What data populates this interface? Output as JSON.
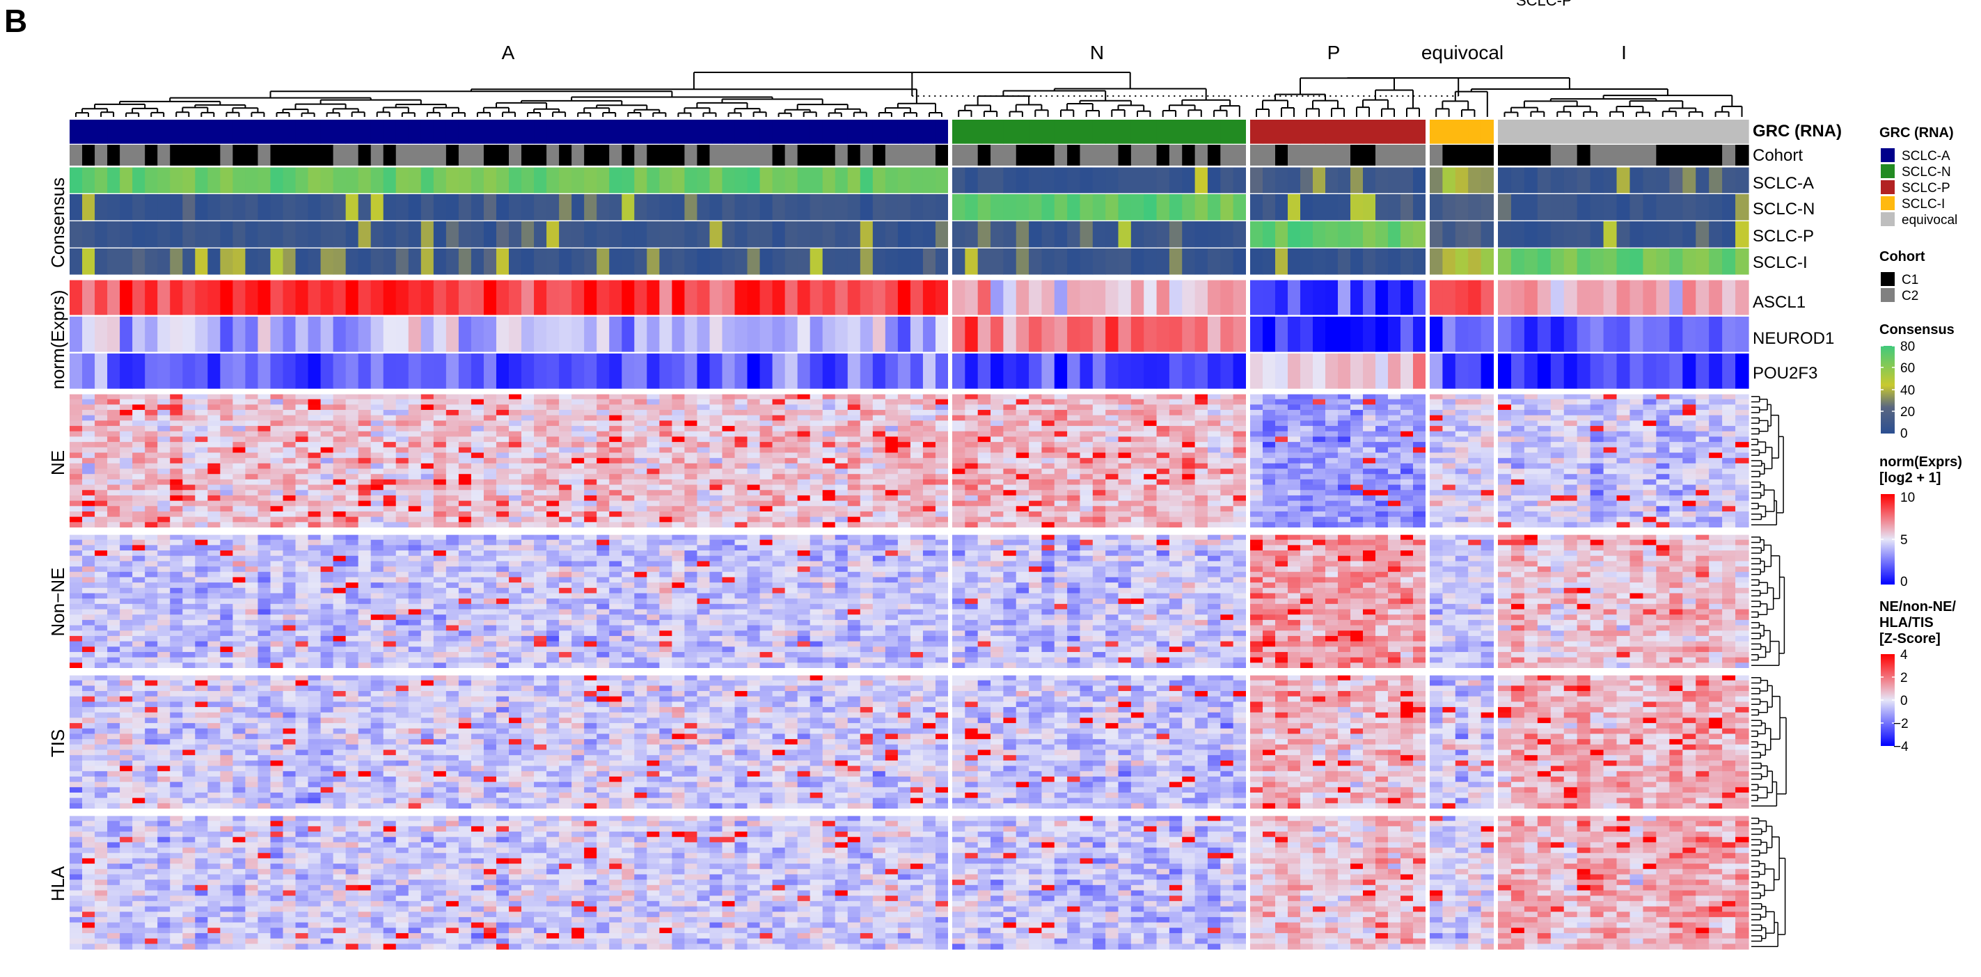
{
  "figure": {
    "panel_label": "B",
    "top_cut_text": "SCLC-P"
  },
  "chart_data": {
    "type": "heatmap",
    "title": "",
    "cluster_labels": [
      "A",
      "N",
      "P",
      "equivocal",
      "I"
    ],
    "cluster_sample_counts": [
      70,
      23,
      14,
      5,
      19
    ],
    "annotations": {
      "grc_label": "GRC (RNA)",
      "cohort_label": "Cohort",
      "grc_colors": [
        "#00008B",
        "#228B22",
        "#B22222",
        "#FFB90F",
        "#BEBEBE"
      ],
      "cohort_pattern": "mixed C1/C2"
    },
    "consensus": {
      "group_label": "Consensus",
      "rows": [
        "SCLC-A",
        "SCLC-N",
        "SCLC-P",
        "SCLC-I"
      ],
      "range": [
        0,
        80
      ]
    },
    "expression": {
      "group_label": "norm(Exprs)",
      "rows": [
        "ASCL1",
        "NEUROD1",
        "POU2F3"
      ],
      "range": [
        0,
        10
      ]
    },
    "signatures": {
      "groups": [
        {
          "label": "NE",
          "gene_count": 25
        },
        {
          "label": "Non−NE",
          "gene_count": 25
        },
        {
          "label": "TIS",
          "gene_count": 25
        },
        {
          "label": "HLA",
          "gene_count": 25
        }
      ],
      "range": [
        -4,
        4
      ]
    },
    "legends": [
      {
        "title": "GRC (RNA)",
        "items": [
          {
            "label": "SCLC-A",
            "color": "#00008B"
          },
          {
            "label": "SCLC-N",
            "color": "#228B22"
          },
          {
            "label": "SCLC-P",
            "color": "#B22222"
          },
          {
            "label": "SCLC-I",
            "color": "#FFB90F"
          },
          {
            "label": "equivocal",
            "color": "#BEBEBE"
          }
        ]
      },
      {
        "title": "Cohort",
        "items": [
          {
            "label": "C1",
            "color": "#000000"
          },
          {
            "label": "C2",
            "color": "#808080"
          }
        ]
      },
      {
        "title": "Consensus",
        "ticks": [
          "80",
          "60",
          "40",
          "20",
          "0"
        ],
        "colors": [
          "#2B4E91",
          "#5A6781",
          "#C9C92F",
          "#41C97C"
        ]
      },
      {
        "title_lines": [
          "norm(Exprs)",
          "[log2 + 1]"
        ],
        "ticks": [
          "10",
          "5",
          "0"
        ],
        "colors": [
          "#0000FF",
          "#E6E6F8",
          "#FF0000"
        ]
      },
      {
        "title_lines": [
          "NE/non-NE/",
          "HLA/TIS",
          "[Z-Score]"
        ],
        "ticks": [
          "4",
          "2",
          "0",
          "−2",
          "−4"
        ],
        "colors": [
          "#0000FF",
          "#E6E6F8",
          "#FF0000"
        ]
      }
    ]
  }
}
